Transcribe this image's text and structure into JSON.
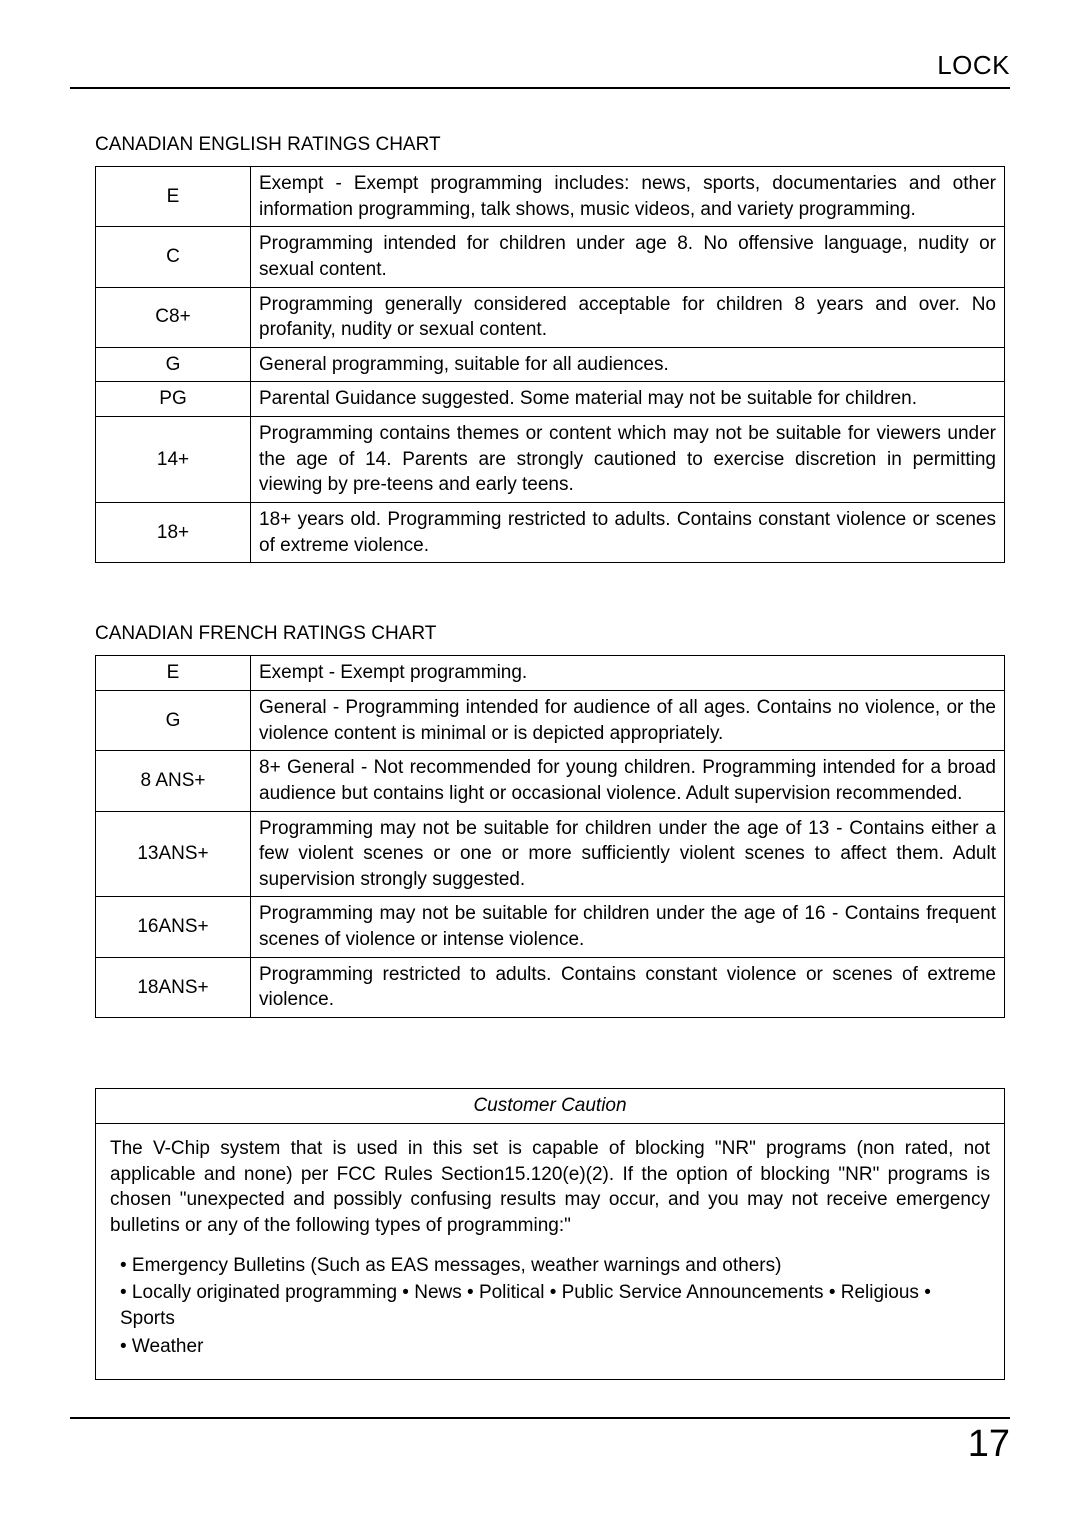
{
  "header": {
    "title": "LOCK"
  },
  "english_chart": {
    "title": "CANADIAN ENGLISH RATINGS CHART",
    "rows": [
      {
        "code": "E",
        "desc": "Exempt - Exempt programming includes: news, sports, documentaries and other information programming, talk shows, music videos, and variety programming."
      },
      {
        "code": "C",
        "desc": "Programming intended for children under age 8. No offensive language, nudity or sexual content."
      },
      {
        "code": "C8+",
        "desc": "Programming generally considered acceptable for children 8 years and over. No profanity, nudity or sexual content."
      },
      {
        "code": "G",
        "desc": "General programming, suitable for all audiences."
      },
      {
        "code": "PG",
        "desc": "Parental Guidance suggested. Some material may not be suitable for children."
      },
      {
        "code": "14+",
        "desc": "Programming contains themes or content which may not be suitable for viewers under the age of 14. Parents are strongly cautioned to exercise discretion in permitting viewing by pre-teens and early teens."
      },
      {
        "code": "18+",
        "desc": "18+ years old. Programming restricted to adults. Contains constant violence or scenes of extreme violence."
      }
    ]
  },
  "french_chart": {
    "title": "CANADIAN FRENCH RATINGS CHART",
    "rows": [
      {
        "code": "E",
        "desc": "Exempt - Exempt programming."
      },
      {
        "code": "G",
        "desc": "General - Programming intended for audience of all ages. Contains no violence, or the violence content is minimal or is depicted appropriately."
      },
      {
        "code": "8 ANS+",
        "desc": "8+ General - Not recommended for young children. Programming intended for a broad audience but contains light or occasional violence. Adult supervision recommended."
      },
      {
        "code": "13ANS+",
        "desc": "Programming may not be suitable for children under the age of 13 - Contains either a few violent scenes or one or more sufficiently violent scenes to affect them. Adult supervision strongly suggested."
      },
      {
        "code": "16ANS+",
        "desc": "Programming may not be suitable for children under the age of 16 - Contains frequent scenes of violence or intense violence."
      },
      {
        "code": "18ANS+",
        "desc": "Programming restricted to adults. Contains constant violence or scenes of extreme violence."
      }
    ]
  },
  "caution": {
    "title": "Customer Caution",
    "paragraph": "The V-Chip system that is used in this set is capable of blocking \"NR\" programs (non rated, not applicable and none) per FCC Rules Section15.120(e)(2). If the option of blocking \"NR\" programs is chosen \"unexpected and possibly confusing results may occur, and you may not receive emergency bulletins or any of the following types of programming:\"",
    "bullets": [
      "• Emergency Bulletins (Such as EAS messages, weather warnings and others)",
      "• Locally originated programming  • News  • Political  • Public Service Announcements  • Religious  • Sports",
      "• Weather"
    ]
  },
  "page_number": "17"
}
